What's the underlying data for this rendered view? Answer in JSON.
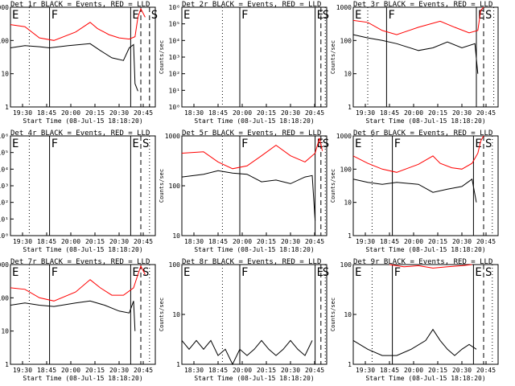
{
  "chart_data": [
    {
      "type": "line",
      "title": "Det 1r BLACK = Events, RED = LLD",
      "xlabel": "Start Time (08-Jul-15 18:18:20)",
      "ylabel": "Counts/sec",
      "yscale": "log",
      "ylim": [
        1,
        1000
      ],
      "y_ticks": [
        "1",
        "10",
        "100",
        "1000"
      ],
      "x_ticks": [
        "19:30",
        "18:45",
        "20:00",
        "20:15",
        "20:30",
        "20:45"
      ],
      "markers": [
        {
          "label": "",
          "style": "dotted",
          "x": 0.13
        },
        {
          "label": "F",
          "style": "solid",
          "x": 0.27
        },
        {
          "label": "E",
          "style": "solid",
          "x": 0.83
        },
        {
          "label": "",
          "style": "dashed",
          "x": 0.9
        },
        {
          "label": "S",
          "style": "dashed",
          "x": 0.96
        }
      ],
      "corner_label": "E",
      "series": [
        {
          "color": "#ff0000",
          "x": [
            0,
            0.1,
            0.2,
            0.3,
            0.45,
            0.55,
            0.6,
            0.68,
            0.75,
            0.82,
            0.86,
            0.88,
            0.9,
            0.93
          ],
          "values": [
            300,
            260,
            120,
            100,
            180,
            350,
            230,
            150,
            120,
            110,
            130,
            500,
            900,
            500
          ]
        },
        {
          "color": "#000000",
          "x": [
            0,
            0.1,
            0.2,
            0.27,
            0.4,
            0.55,
            0.62,
            0.7,
            0.78,
            0.82,
            0.85,
            0.86,
            0.88
          ],
          "values": [
            60,
            70,
            65,
            60,
            70,
            80,
            50,
            30,
            25,
            60,
            75,
            5,
            3
          ]
        }
      ]
    },
    {
      "type": "line",
      "title": "Det 2r BLACK = Events, RED = LLD",
      "xlabel": "Start Time (08-Jul-15 18:18:20)",
      "ylabel": "Counts/sec",
      "yscale": "log",
      "ylim": [
        1,
        1000000
      ],
      "y_ticks": [
        "10⁰",
        "10¹",
        "10²",
        "10³",
        "10⁴",
        "10⁵",
        "10⁶"
      ],
      "x_ticks": [
        "18:30",
        "18:45",
        "20:00",
        "20:15",
        "20:30",
        "20:45"
      ],
      "markers": [
        {
          "label": "",
          "style": "dotted",
          "x": 0.28
        },
        {
          "label": "F",
          "style": "solid",
          "x": 0.4
        },
        {
          "label": "E",
          "style": "solid",
          "x": 0.92
        },
        {
          "label": "S",
          "style": "dashed",
          "x": 0.96
        },
        {
          "label": "",
          "style": "dotted",
          "x": 0.99
        }
      ],
      "corner_label": "E",
      "series": []
    },
    {
      "type": "line",
      "title": "Det 3r BLACK = Events, RED = LLD",
      "xlabel": "Start Time (08-Jul-15 18:18:20)",
      "ylabel": "Counts/sec",
      "yscale": "log",
      "ylim": [
        1,
        1000
      ],
      "y_ticks": [
        "1",
        "10",
        "100",
        "1000"
      ],
      "x_ticks": [
        "19:30",
        "18:45",
        "20:00",
        "20:15",
        "20:30",
        "20:45"
      ],
      "markers": [
        {
          "label": "",
          "style": "dotted",
          "x": 0.1
        },
        {
          "label": "F",
          "style": "solid",
          "x": 0.23
        },
        {
          "label": "E",
          "style": "solid",
          "x": 0.85
        },
        {
          "label": "S",
          "style": "dashed",
          "x": 0.9
        },
        {
          "label": "",
          "style": "dotted",
          "x": 0.97
        }
      ],
      "corner_label": "E",
      "series": [
        {
          "color": "#ff0000",
          "x": [
            0,
            0.1,
            0.2,
            0.3,
            0.45,
            0.6,
            0.7,
            0.8,
            0.86,
            0.88,
            0.9
          ],
          "values": [
            400,
            350,
            200,
            150,
            250,
            380,
            250,
            170,
            200,
            800,
            1000
          ]
        },
        {
          "color": "#000000",
          "x": [
            0,
            0.1,
            0.2,
            0.3,
            0.45,
            0.55,
            0.65,
            0.75,
            0.84,
            0.86
          ],
          "values": [
            150,
            120,
            100,
            80,
            50,
            60,
            90,
            60,
            80,
            10
          ]
        }
      ]
    },
    {
      "type": "line",
      "title": "Det 4r BLACK = Events, RED = LLD",
      "xlabel": "Start Time (08-Jul-15 18:18:20)",
      "ylabel": "Counts/sec",
      "yscale": "log",
      "ylim": [
        1,
        1000000
      ],
      "y_ticks": [
        "10⁰",
        "10¹",
        "10²",
        "10³",
        "10⁴",
        "10⁵",
        "10⁶"
      ],
      "x_ticks": [
        "19:30",
        "18:45",
        "20:00",
        "20:15",
        "20:30",
        "20:45"
      ],
      "markers": [
        {
          "label": "",
          "style": "dotted",
          "x": 0.13
        },
        {
          "label": "F",
          "style": "solid",
          "x": 0.27
        },
        {
          "label": "E",
          "style": "solid",
          "x": 0.83
        },
        {
          "label": "S",
          "style": "dashed",
          "x": 0.9
        },
        {
          "label": "",
          "style": "dotted",
          "x": 0.96
        }
      ],
      "corner_label": "E",
      "series": []
    },
    {
      "type": "line",
      "title": "Det 5r BLACK = Events, RED = LLD",
      "xlabel": "Start Time (08-Jul-15 18:18:20)",
      "ylabel": "Counts/sec",
      "yscale": "log",
      "ylim": [
        10,
        1000
      ],
      "y_ticks": [
        "10",
        "100",
        "1000"
      ],
      "x_ticks": [
        "18:30",
        "18:45",
        "20:00",
        "20:15",
        "20:30",
        "20:45"
      ],
      "markers": [
        {
          "label": "",
          "style": "dotted",
          "x": 0.28
        },
        {
          "label": "F",
          "style": "solid",
          "x": 0.4
        },
        {
          "label": "E",
          "style": "solid",
          "x": 0.92
        },
        {
          "label": "S",
          "style": "dashed",
          "x": 0.96
        },
        {
          "label": "",
          "style": "dotted",
          "x": 0.99
        }
      ],
      "corner_label": "",
      "series": [
        {
          "color": "#ff0000",
          "x": [
            0,
            0.15,
            0.25,
            0.35,
            0.45,
            0.55,
            0.65,
            0.75,
            0.85,
            0.92,
            0.95,
            0.97
          ],
          "values": [
            450,
            480,
            300,
            220,
            250,
            400,
            650,
            400,
            300,
            450,
            900,
            500
          ]
        },
        {
          "color": "#000000",
          "x": [
            0,
            0.15,
            0.25,
            0.35,
            0.45,
            0.55,
            0.65,
            0.75,
            0.85,
            0.9,
            0.92
          ],
          "values": [
            150,
            170,
            200,
            180,
            170,
            120,
            130,
            110,
            150,
            160,
            20
          ]
        }
      ]
    },
    {
      "type": "line",
      "title": "Det 6r BLACK = Events, RED = LLD",
      "xlabel": "Start Time (08-Jul-15 18:18:20)",
      "ylabel": "Counts/sec",
      "yscale": "log",
      "ylim": [
        1,
        1000
      ],
      "y_ticks": [
        "1",
        "10",
        "100",
        "1000"
      ],
      "x_ticks": [
        "19:30",
        "18:45",
        "20:00",
        "20:15",
        "20:30",
        "20:45"
      ],
      "markers": [
        {
          "label": "",
          "style": "dotted",
          "x": 0.13
        },
        {
          "label": "F",
          "style": "solid",
          "x": 0.27
        },
        {
          "label": "E",
          "style": "solid",
          "x": 0.83
        },
        {
          "label": "S",
          "style": "dashed",
          "x": 0.9
        },
        {
          "label": "",
          "style": "dotted",
          "x": 0.96
        }
      ],
      "corner_label": "E",
      "series": [
        {
          "color": "#ff0000",
          "x": [
            0,
            0.1,
            0.2,
            0.3,
            0.45,
            0.55,
            0.6,
            0.68,
            0.75,
            0.82,
            0.86,
            0.88,
            0.9
          ],
          "values": [
            250,
            150,
            100,
            80,
            140,
            250,
            150,
            110,
            100,
            150,
            300,
            700,
            1000
          ]
        },
        {
          "color": "#000000",
          "x": [
            0,
            0.1,
            0.2,
            0.3,
            0.45,
            0.55,
            0.65,
            0.75,
            0.82,
            0.85
          ],
          "values": [
            50,
            40,
            35,
            40,
            35,
            20,
            25,
            30,
            50,
            10
          ]
        }
      ]
    },
    {
      "type": "line",
      "title": "Det 7r BLACK = Events, RED = LLD",
      "xlabel": "Start Time (08-Jul-15 18:18:20)",
      "ylabel": "Counts/sec",
      "yscale": "log",
      "ylim": [
        1,
        1000
      ],
      "y_ticks": [
        "1",
        "10",
        "100",
        "1000"
      ],
      "x_ticks": [
        "19:30",
        "18:45",
        "20:00",
        "20:15",
        "20:30",
        "20:45"
      ],
      "markers": [
        {
          "label": "",
          "style": "dotted",
          "x": 0.13
        },
        {
          "label": "F",
          "style": "solid",
          "x": 0.27
        },
        {
          "label": "E",
          "style": "solid",
          "x": 0.83
        },
        {
          "label": "S",
          "style": "dashed",
          "x": 0.9
        },
        {
          "label": "",
          "style": "dotted",
          "x": 0.96
        }
      ],
      "corner_label": "E",
      "series": [
        {
          "color": "#ff0000",
          "x": [
            0,
            0.1,
            0.2,
            0.3,
            0.45,
            0.55,
            0.62,
            0.7,
            0.78,
            0.85,
            0.88,
            0.9,
            0.93
          ],
          "values": [
            200,
            180,
            100,
            80,
            150,
            350,
            200,
            120,
            120,
            200,
            500,
            900,
            500
          ]
        },
        {
          "color": "#000000",
          "x": [
            0,
            0.1,
            0.2,
            0.3,
            0.45,
            0.55,
            0.65,
            0.75,
            0.82,
            0.85,
            0.86
          ],
          "values": [
            60,
            70,
            60,
            55,
            70,
            80,
            60,
            40,
            35,
            80,
            10
          ]
        }
      ]
    },
    {
      "type": "line",
      "title": "Det 8r BLACK = Events, RED = LLD",
      "xlabel": "Start Time (08-Jul-15 18:18:20)",
      "ylabel": "Counts/sec",
      "yscale": "log",
      "ylim": [
        1,
        100
      ],
      "y_ticks": [
        "1",
        "10",
        "100"
      ],
      "x_ticks": [
        "18:30",
        "18:45",
        "20:00",
        "20:15",
        "20:30",
        "20:45"
      ],
      "markers": [
        {
          "label": "",
          "style": "dotted",
          "x": 0.28
        },
        {
          "label": "F",
          "style": "solid",
          "x": 0.4
        },
        {
          "label": "E",
          "style": "solid",
          "x": 0.92
        },
        {
          "label": "S",
          "style": "dashed",
          "x": 0.96
        },
        {
          "label": "",
          "style": "dotted",
          "x": 0.99
        }
      ],
      "corner_label": "E",
      "series": [
        {
          "color": "#000000",
          "x": [
            0,
            0.05,
            0.1,
            0.15,
            0.2,
            0.25,
            0.3,
            0.35,
            0.4,
            0.45,
            0.5,
            0.55,
            0.6,
            0.65,
            0.7,
            0.75,
            0.8,
            0.85,
            0.9
          ],
          "values": [
            3,
            2,
            3,
            2,
            3,
            1.5,
            2,
            1,
            2,
            1.5,
            2,
            3,
            2,
            1.5,
            2,
            3,
            2,
            1.5,
            3
          ]
        }
      ]
    },
    {
      "type": "line",
      "title": "Det 9r BLACK = Events, RED = LLD",
      "xlabel": "Start Time (08-Jul-15 18:18:20)",
      "ylabel": "Counts/sec",
      "yscale": "log",
      "ylim": [
        1,
        100
      ],
      "y_ticks": [
        "1",
        "10",
        "100"
      ],
      "x_ticks": [
        "19:30",
        "18:45",
        "20:00",
        "20:15",
        "20:30",
        "20:45"
      ],
      "markers": [
        {
          "label": "",
          "style": "dotted",
          "x": 0.13
        },
        {
          "label": "F",
          "style": "solid",
          "x": 0.27
        },
        {
          "label": "E",
          "style": "solid",
          "x": 0.83
        },
        {
          "label": "S",
          "style": "dashed",
          "x": 0.9
        },
        {
          "label": "",
          "style": "dotted",
          "x": 0.96
        }
      ],
      "corner_label": "E",
      "series": [
        {
          "color": "#ff0000",
          "x": [
            0.25,
            0.35,
            0.45,
            0.55,
            0.65,
            0.75,
            0.82
          ],
          "values": [
            100,
            90,
            95,
            85,
            90,
            95,
            100
          ]
        },
        {
          "color": "#000000",
          "x": [
            0,
            0.1,
            0.2,
            0.3,
            0.4,
            0.5,
            0.55,
            0.6,
            0.65,
            0.7,
            0.75,
            0.8,
            0.85
          ],
          "values": [
            3,
            2,
            1.5,
            1.5,
            2,
            3,
            5,
            3,
            2,
            1.5,
            2,
            2.5,
            2
          ]
        }
      ]
    }
  ]
}
